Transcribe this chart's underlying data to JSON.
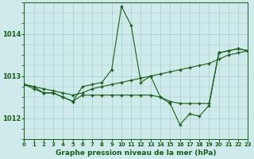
{
  "title": "Graphe pression niveau de la mer (hPa)",
  "background_color": "#ceeaea",
  "grid_color": "#aacccc",
  "line_color": "#1a5c1a",
  "xlim": [
    0,
    23
  ],
  "ylim": [
    1011.5,
    1014.75
  ],
  "yticks": [
    1012,
    1013,
    1014
  ],
  "xticks": [
    0,
    1,
    2,
    3,
    4,
    5,
    6,
    7,
    8,
    9,
    10,
    11,
    12,
    13,
    14,
    15,
    16,
    17,
    18,
    19,
    20,
    21,
    22,
    23
  ],
  "series": [
    {
      "x": [
        0,
        1,
        2,
        3,
        4,
        5,
        6,
        7,
        8,
        9,
        10,
        11,
        12,
        13,
        14,
        15,
        16,
        17,
        18,
        19,
        20,
        21,
        22,
        23
      ],
      "y": [
        1012.8,
        1012.75,
        1012.6,
        1012.6,
        1012.5,
        1012.4,
        1012.75,
        1012.8,
        1012.85,
        1013.15,
        1014.65,
        1014.2,
        1012.85,
        1013.0,
        1012.5,
        1012.35,
        1011.85,
        1012.1,
        1012.05,
        1012.3,
        1013.55,
        1013.6,
        1013.65,
        1013.6
      ]
    },
    {
      "x": [
        0,
        1,
        2,
        3,
        4,
        5,
        6,
        7,
        8,
        9,
        10,
        11,
        12,
        13,
        14,
        15,
        16,
        17,
        18,
        19,
        20,
        21,
        22,
        23
      ],
      "y": [
        1012.8,
        1012.75,
        1012.7,
        1012.65,
        1012.6,
        1012.55,
        1012.6,
        1012.7,
        1012.75,
        1012.8,
        1012.85,
        1012.9,
        1012.95,
        1013.0,
        1013.05,
        1013.1,
        1013.15,
        1013.2,
        1013.25,
        1013.3,
        1013.4,
        1013.5,
        1013.55,
        1013.6
      ]
    },
    {
      "x": [
        0,
        1,
        2,
        3,
        4,
        5,
        6,
        7,
        8,
        9,
        10,
        11,
        12,
        13,
        14,
        15,
        16,
        17,
        18,
        19,
        20,
        21,
        22,
        23
      ],
      "y": [
        1012.8,
        1012.7,
        1012.6,
        1012.6,
        1012.5,
        1012.4,
        1012.55,
        1012.55,
        1012.55,
        1012.55,
        1012.55,
        1012.55,
        1012.55,
        1012.55,
        1012.5,
        1012.4,
        1012.35,
        1012.35,
        1012.35,
        1012.35,
        1013.55,
        1013.6,
        1013.65,
        1013.6
      ]
    }
  ]
}
